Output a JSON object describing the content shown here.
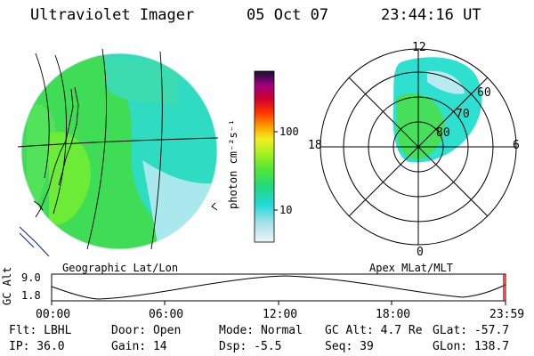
{
  "header": {
    "instrument": "Ultraviolet Imager",
    "date": "05 Oct 07",
    "time": "23:44:16 UT"
  },
  "left_panel": {
    "caption": "Geographic Lat/Lon"
  },
  "color_bar": {
    "ticks": [
      "100",
      "10"
    ],
    "unit_label": "photon cm⁻²s⁻¹"
  },
  "polar_plot": {
    "caption": "Apex MLat/MLT",
    "mlt_labels": {
      "top": "12",
      "left": "18",
      "right": "6",
      "bottom": "0"
    },
    "lat_labels": [
      "60",
      "70",
      "80"
    ]
  },
  "orbit_plot": {
    "ylabel": "GC Alt",
    "y_ticks": [
      "9.0",
      "1.8"
    ],
    "x_ticks": [
      "00:00",
      "06:00",
      "12:00",
      "18:00",
      "23:59"
    ]
  },
  "info": {
    "filter": "Flt: LBHL",
    "ip": "IP: 36.0",
    "door": "Door: Open",
    "gain": "Gain: 14",
    "mode": "Mode: Normal",
    "dsp": "Dsp:   -5.5",
    "gc_alt": "GC Alt: 4.7 Re",
    "seq": "Seq: 39",
    "glat": "GLat: -57.7",
    "glon": "GLon: 138.7"
  },
  "colors": {
    "dominant_green": "#4ee63c",
    "cyan": "#2ee0d0",
    "light_blue": "#bfeaf0",
    "orbit_marker": "#ff0000"
  }
}
